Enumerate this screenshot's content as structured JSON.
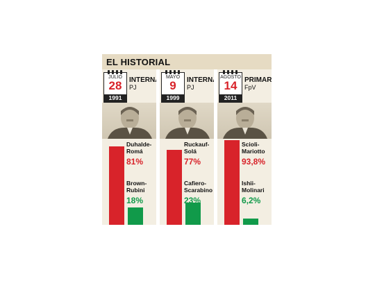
{
  "header": {
    "title": "EL HISTORIAL"
  },
  "colors": {
    "winner": "#d8232a",
    "loser": "#119a4a"
  },
  "panels": [
    {
      "month": "JULIO",
      "day": "28",
      "year": "1991",
      "type": "INTERNA",
      "party": "PJ",
      "candidates": [
        {
          "line1": "Duhalde-",
          "line2": "Romá",
          "pct_label": "81%",
          "value": 81
        },
        {
          "line1": "Brown-",
          "line2": "Rubini",
          "pct_label": "18%",
          "value": 18
        }
      ]
    },
    {
      "month": "MAYO",
      "day": "9",
      "year": "1999",
      "type": "INTERNA",
      "party": "PJ",
      "candidates": [
        {
          "line1": "Ruckauf-",
          "line2": "Solá",
          "pct_label": "77%",
          "value": 77
        },
        {
          "line1": "Cafiero-",
          "line2": "Scarabino",
          "pct_label": "23%",
          "value": 23
        }
      ]
    },
    {
      "month": "AGOSTO",
      "day": "14",
      "year": "2011",
      "type": "PRIMARIA",
      "party": "FpV",
      "candidates": [
        {
          "line1": "Scioli-",
          "line2": "Mariotto",
          "pct_label": "93,8%",
          "value": 93.8
        },
        {
          "line1": "Ishii-",
          "line2": "Molinari",
          "pct_label": "6,2%",
          "value": 6.2
        }
      ]
    }
  ],
  "chart_data": {
    "type": "bar",
    "title": "EL HISTORIAL",
    "categories": [
      "JULIO 28 1991 INTERNA PJ",
      "MAYO 9 1999 INTERNA PJ",
      "AGOSTO 14 2011 PRIMARIA FpV"
    ],
    "series": [
      {
        "values": [
          81,
          77,
          93.8
        ],
        "labels": [
          "Duhalde-Romá",
          "Ruckauf-Solá",
          "Scioli-Mariotto"
        ]
      },
      {
        "values": [
          18,
          23,
          6.2
        ],
        "labels": [
          "Brown-Rubini",
          "Cafiero-Scarabino",
          "Ishii-Molinari"
        ]
      }
    ],
    "ylim": [
      0,
      100
    ]
  }
}
